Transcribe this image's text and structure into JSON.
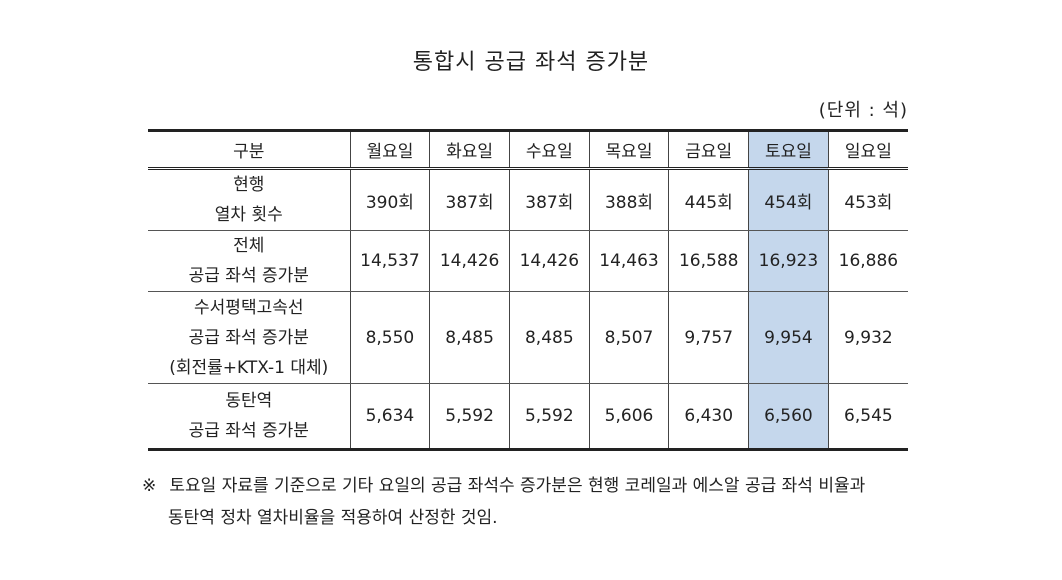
{
  "title": "통합시 공급 좌석 증가분",
  "unit": "(단위 : 석)",
  "table": {
    "corner": "구분",
    "days": [
      "월요일",
      "화요일",
      "수요일",
      "목요일",
      "금요일",
      "토요일",
      "일요일"
    ],
    "highlight_day": "토요일",
    "highlight_color": "#c5d7ec",
    "rows": [
      {
        "label_lines": [
          "현행",
          "열차 횟수"
        ],
        "values": [
          "390회",
          "387회",
          "387회",
          "388회",
          "445회",
          "454회",
          "453회"
        ]
      },
      {
        "label_lines": [
          "전체",
          "공급 좌석 증가분"
        ],
        "values": [
          "14,537",
          "14,426",
          "14,426",
          "14,463",
          "16,588",
          "16,923",
          "16,886"
        ]
      },
      {
        "label_lines": [
          "수서평택고속선",
          "공급 좌석 증가분",
          "(회전률+KTX-1 대체)"
        ],
        "values": [
          "8,550",
          "8,485",
          "8,485",
          "8,507",
          "9,757",
          "9,954",
          "9,932"
        ]
      },
      {
        "label_lines": [
          "동탄역",
          "공급 좌석 증가분"
        ],
        "values": [
          "5,634",
          "5,592",
          "5,592",
          "5,606",
          "6,430",
          "6,560",
          "6,545"
        ]
      }
    ]
  },
  "note": {
    "mark": "※",
    "line1": "토요일 자료를 기준으로 기타 요일의 공급 좌석수 증가분은 현행 코레일과 에스알 공급 좌석 비율과",
    "line2": "동탄역 정차 열차비율을 적용하여 산정한 것임."
  }
}
